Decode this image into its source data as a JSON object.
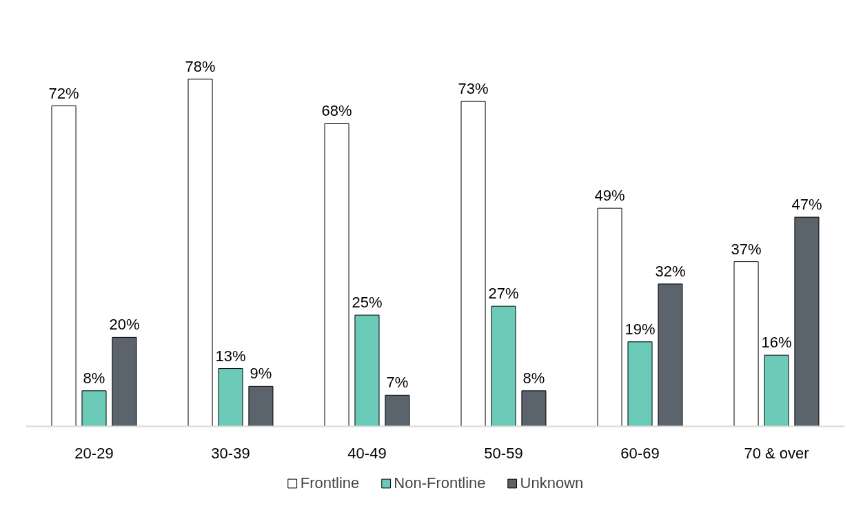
{
  "chart_data": {
    "type": "bar",
    "categories": [
      "20-29",
      "30-39",
      "40-49",
      "50-59",
      "60-69",
      "70 & over"
    ],
    "series": [
      {
        "name": "Frontline",
        "color": "#ffffff",
        "values": [
          72,
          78,
          68,
          73,
          49,
          37
        ],
        "value_labels": [
          "72%",
          "78%",
          "68%",
          "73%",
          "49%",
          "37%"
        ]
      },
      {
        "name": "Non-Frontline",
        "color": "#6ccbb8",
        "values": [
          8,
          13,
          25,
          27,
          19,
          16
        ],
        "value_labels": [
          "8%",
          "13%",
          "25%",
          "27%",
          "19%",
          "16%"
        ]
      },
      {
        "name": "Unknown",
        "color": "#5b646d",
        "values": [
          20,
          9,
          7,
          8,
          32,
          47
        ],
        "value_labels": [
          "20%",
          "9%",
          "7%",
          "8%",
          "32%",
          "47%"
        ]
      }
    ],
    "grid": false,
    "legend": "bottom",
    "tick_labels": "x"
  }
}
